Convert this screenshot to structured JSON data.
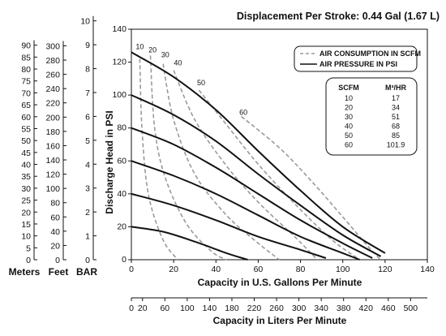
{
  "header": {
    "displacement": "Displacement Per Stroke: 0.44 Gal (1.67 L)"
  },
  "chart_data": {
    "type": "line",
    "xlabel": "Capacity in U.S. Gallons Per Minute",
    "ylabel": "Discharge Head in PSI",
    "xlim": [
      0,
      140
    ],
    "ylim": [
      0,
      140
    ],
    "grid": false,
    "x_ticks": [
      "0",
      "20",
      "40",
      "60",
      "80",
      "100",
      "120",
      "140"
    ],
    "y_ticks": [
      "0",
      "20",
      "40",
      "60",
      "80",
      "100",
      "120",
      "140"
    ],
    "legend": {
      "position": "top-right",
      "items": [
        {
          "label": "AIR CONSUMPTION IN SCFM",
          "style": "dashed",
          "color": "#9a9a9a"
        },
        {
          "label": "AIR PRESSURE IN PSI",
          "style": "solid",
          "color": "#111111"
        }
      ]
    },
    "conversion_table": {
      "headers": [
        "SCFM",
        "M³/HR"
      ],
      "rows": [
        [
          "10",
          "17"
        ],
        [
          "20",
          "34"
        ],
        [
          "30",
          "51"
        ],
        [
          "40",
          "68"
        ],
        [
          "50",
          "85"
        ],
        [
          "60",
          "101.9"
        ]
      ]
    },
    "pressure_series": [
      {
        "points": [
          [
            0,
            126
          ],
          [
            20,
            111
          ],
          [
            40,
            91
          ],
          [
            60,
            66
          ],
          [
            80,
            42
          ],
          [
            100,
            20
          ],
          [
            120,
            4
          ]
        ]
      },
      {
        "points": [
          [
            0,
            100
          ],
          [
            20,
            88
          ],
          [
            40,
            72
          ],
          [
            60,
            52
          ],
          [
            80,
            33
          ],
          [
            100,
            15
          ],
          [
            118,
            2
          ]
        ]
      },
      {
        "points": [
          [
            0,
            80
          ],
          [
            20,
            70
          ],
          [
            40,
            56
          ],
          [
            60,
            40
          ],
          [
            80,
            24
          ],
          [
            100,
            10
          ],
          [
            114,
            1
          ]
        ]
      },
      {
        "points": [
          [
            0,
            60
          ],
          [
            20,
            51
          ],
          [
            40,
            40
          ],
          [
            60,
            27
          ],
          [
            80,
            14
          ],
          [
            100,
            4
          ],
          [
            108,
            0
          ]
        ]
      },
      {
        "points": [
          [
            0,
            40
          ],
          [
            20,
            33
          ],
          [
            40,
            24
          ],
          [
            60,
            14
          ],
          [
            80,
            6
          ],
          [
            92,
            1
          ]
        ]
      },
      {
        "points": [
          [
            0,
            20
          ],
          [
            15,
            17
          ],
          [
            30,
            11
          ],
          [
            45,
            4
          ],
          [
            55,
            0
          ]
        ]
      }
    ],
    "air_series": [
      {
        "label": "10",
        "label_at": [
          4,
          128
        ],
        "points": [
          [
            4,
            122
          ],
          [
            5,
            80
          ],
          [
            8,
            40
          ],
          [
            15,
            12
          ],
          [
            22,
            0
          ]
        ]
      },
      {
        "label": "20",
        "label_at": [
          10,
          126
        ],
        "points": [
          [
            9,
            124
          ],
          [
            11,
            80
          ],
          [
            16,
            50
          ],
          [
            26,
            22
          ],
          [
            38,
            5
          ],
          [
            45,
            0
          ]
        ]
      },
      {
        "label": "30",
        "label_at": [
          16,
          123
        ],
        "points": [
          [
            15,
            119
          ],
          [
            20,
            85
          ],
          [
            30,
            52
          ],
          [
            45,
            27
          ],
          [
            60,
            10
          ],
          [
            70,
            0
          ]
        ]
      },
      {
        "label": "40",
        "label_at": [
          22,
          118
        ],
        "points": [
          [
            20,
            115
          ],
          [
            30,
            85
          ],
          [
            45,
            57
          ],
          [
            60,
            35
          ],
          [
            78,
            13
          ],
          [
            88,
            0
          ]
        ]
      },
      {
        "label": "50",
        "label_at": [
          33,
          106
        ],
        "points": [
          [
            32,
            103
          ],
          [
            45,
            82
          ],
          [
            60,
            58
          ],
          [
            78,
            33
          ],
          [
            95,
            12
          ],
          [
            108,
            0
          ]
        ]
      },
      {
        "label": "60",
        "label_at": [
          53,
          88
        ],
        "points": [
          [
            52,
            87
          ],
          [
            70,
            68
          ],
          [
            85,
            48
          ],
          [
            100,
            26
          ],
          [
            112,
            8
          ],
          [
            118,
            0
          ]
        ]
      }
    ],
    "liters_axis": {
      "title": "Capacity in Liters Per Minute",
      "max": 530,
      "ticks": [
        "0",
        "20",
        "60",
        "100",
        "140",
        "180",
        "220",
        "260",
        "300",
        "340",
        "380",
        "420",
        "460",
        "500"
      ],
      "values": [
        0,
        20,
        60,
        100,
        140,
        180,
        220,
        260,
        300,
        340,
        380,
        420,
        460,
        500
      ]
    },
    "meters_axis": {
      "label": "Meters",
      "max": 96.7,
      "ticks": [
        "0",
        "5",
        "10",
        "15",
        "20",
        "25",
        "30",
        "35",
        "40",
        "45",
        "50",
        "55",
        "60",
        "65",
        "70",
        "75",
        "80",
        "85",
        "90"
      ],
      "values": [
        0,
        5,
        10,
        15,
        20,
        25,
        30,
        35,
        40,
        45,
        50,
        55,
        60,
        65,
        70,
        75,
        80,
        85,
        90
      ]
    },
    "feet_axis": {
      "label": "Feet",
      "max": 323.3,
      "ticks": [
        "0",
        "20",
        "40",
        "60",
        "80",
        "100",
        "120",
        "140",
        "160",
        "180",
        "200",
        "220",
        "240",
        "260",
        "280",
        "300"
      ],
      "values": [
        0,
        20,
        40,
        60,
        80,
        100,
        120,
        140,
        160,
        180,
        200,
        220,
        240,
        260,
        280,
        300
      ]
    },
    "bar_axis": {
      "label": "BAR",
      "max": 9.65,
      "ticks": [
        "0",
        "1",
        "2",
        "3",
        "4",
        "5",
        "6",
        "7",
        "8",
        "9",
        "10"
      ],
      "values": [
        0,
        1,
        2,
        3,
        4,
        5,
        6,
        7,
        8,
        9,
        10
      ]
    }
  }
}
